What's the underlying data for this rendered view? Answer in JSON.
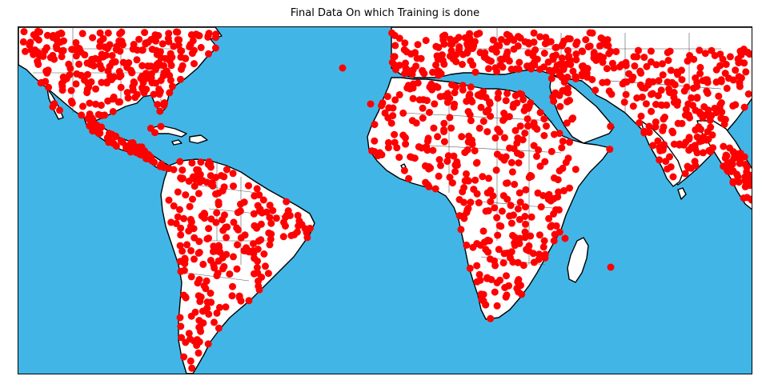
{
  "title": "Final Data On which Training is done",
  "colors": {
    "ocean": "#41b6e6",
    "land": "#ffffff",
    "coast": "#000000",
    "border": "#555555",
    "point": "#ff0000"
  }
}
